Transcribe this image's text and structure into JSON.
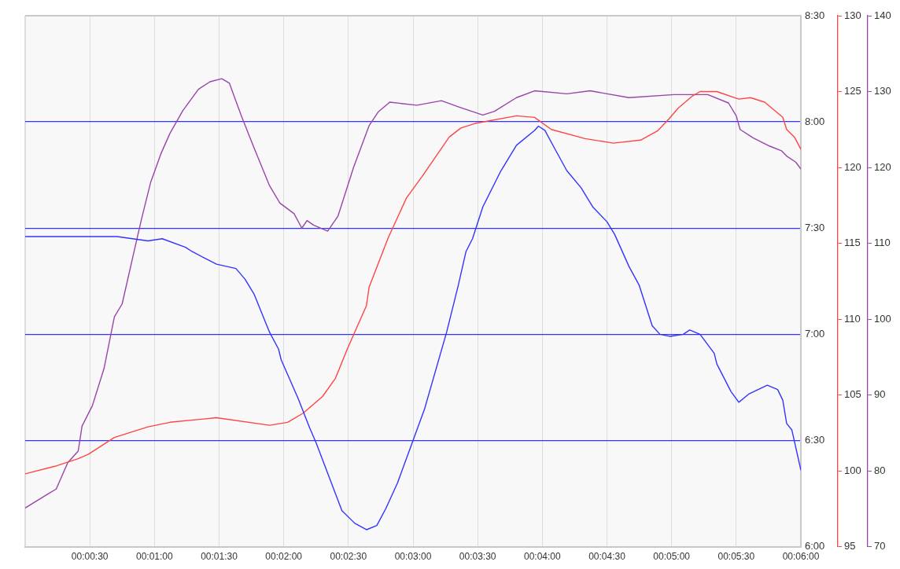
{
  "chart_data": {
    "type": "line",
    "xlim": [
      0,
      6
    ],
    "xticks": [
      {
        "value": 0,
        "label": null
      },
      {
        "value": 0.5,
        "label": "00:00:30"
      },
      {
        "value": 1,
        "label": "00:01:00"
      },
      {
        "value": 1.5,
        "label": "00:01:30"
      },
      {
        "value": 2,
        "label": "00:02:00"
      },
      {
        "value": 2.5,
        "label": "00:02:30"
      },
      {
        "value": 3,
        "label": "00:03:00"
      },
      {
        "value": 3.5,
        "label": "00:03:30"
      },
      {
        "value": 4,
        "label": "00:04:00"
      },
      {
        "value": 4.5,
        "label": "00:04:30"
      },
      {
        "value": 5,
        "label": "00:05:00"
      },
      {
        "value": 5.5,
        "label": "00:05:30"
      },
      {
        "value": 6,
        "label": "00:06:00"
      }
    ],
    "ylim": [
      6,
      8.5
    ],
    "yticks": [
      {
        "value": 6,
        "label": "6:00"
      },
      {
        "value": 6.5,
        "label": "6:30"
      },
      {
        "value": 7,
        "label": "7:00"
      },
      {
        "value": 7.5,
        "label": "7:30"
      },
      {
        "value": 8,
        "label": "8:00"
      },
      {
        "value": 8.5,
        "label": "8:30"
      }
    ],
    "y2lim": [
      95,
      130
    ],
    "y2ticks": [
      95,
      100,
      105,
      110,
      115,
      120,
      125,
      130
    ],
    "y3lim": [
      70,
      140
    ],
    "y3ticks": [
      70,
      80,
      90,
      100,
      110,
      120,
      130,
      140
    ],
    "grid": true,
    "legend": false,
    "marker": "none",
    "series": [
      {
        "color": "#3333ff",
        "x": [
          0,
          0.71,
          0.95,
          1.06,
          1.24,
          1.29,
          1.48,
          1.63,
          1.7,
          1.77,
          1.89,
          1.96,
          1.98,
          2.11,
          2.2,
          2.25,
          2.35,
          2.45,
          2.55,
          2.64,
          2.72,
          2.79,
          2.88,
          2.97,
          3.09,
          3.26,
          3.35,
          3.41,
          3.46,
          3.54,
          3.68,
          3.8,
          3.94,
          3.97,
          4.02,
          4.1,
          4.19,
          4.3,
          4.39,
          4.5,
          4.56,
          4.67,
          4.75,
          4.85,
          4.91,
          4.99,
          5.09,
          5.14,
          5.22,
          5.33,
          5.35,
          5.46,
          5.52,
          5.6,
          5.74,
          5.82,
          5.86,
          5.89,
          5.93,
          6
        ],
        "values": [
          7.46,
          7.46,
          7.44,
          7.45,
          7.41,
          7.39,
          7.33,
          7.31,
          7.26,
          7.19,
          7.01,
          6.93,
          6.88,
          6.7,
          6.56,
          6.49,
          6.33,
          6.17,
          6.11,
          6.08,
          6.1,
          6.18,
          6.3,
          6.45,
          6.65,
          7.01,
          7.23,
          7.39,
          7.45,
          7.6,
          7.77,
          7.89,
          7.96,
          7.98,
          7.96,
          7.87,
          7.77,
          7.69,
          7.6,
          7.53,
          7.47,
          7.32,
          7.23,
          7.04,
          7,
          6.99,
          7,
          7.02,
          7,
          6.91,
          6.86,
          6.73,
          6.68,
          6.72,
          6.76,
          6.74,
          6.69,
          6.58,
          6.55,
          6.36
        ]
      },
      {
        "color": "#ff4444",
        "axis": "y2",
        "x": [
          0,
          0.23,
          0.41,
          0.49,
          0.69,
          0.95,
          1.12,
          1.48,
          1.89,
          2.03,
          2.15,
          2.3,
          2.4,
          2.49,
          2.64,
          2.66,
          2.81,
          2.95,
          3.07,
          3.28,
          3.37,
          3.48,
          3.8,
          3.94,
          4.07,
          4.33,
          4.55,
          4.76,
          4.89,
          4.98,
          5.05,
          5.16,
          5.22,
          5.35,
          5.52,
          5.61,
          5.72,
          5.86,
          5.89,
          5.95,
          6
        ],
        "values": [
          99.8,
          100.3,
          100.8,
          101.1,
          102.2,
          102.9,
          103.2,
          103.5,
          103,
          103.2,
          103.8,
          104.9,
          106.1,
          108,
          110.9,
          112.1,
          115.4,
          118,
          119.4,
          122,
          122.6,
          122.9,
          123.4,
          123.3,
          122.5,
          121.9,
          121.6,
          121.8,
          122.4,
          123.2,
          123.9,
          124.7,
          125,
          125,
          124.5,
          124.6,
          124.3,
          123.3,
          122.5,
          122,
          121.2
        ]
      },
      {
        "color": "#9944aa",
        "axis": "y3",
        "x": [
          0,
          0.18,
          0.24,
          0.33,
          0.41,
          0.44,
          0.52,
          0.61,
          0.69,
          0.75,
          0.83,
          0.9,
          0.97,
          1.05,
          1.12,
          1.22,
          1.34,
          1.43,
          1.52,
          1.58,
          1.67,
          1.77,
          1.89,
          1.97,
          2.08,
          2.14,
          2.18,
          2.23,
          2.34,
          2.42,
          2.54,
          2.66,
          2.73,
          2.82,
          3.03,
          3.22,
          3.35,
          3.54,
          3.63,
          3.8,
          3.94,
          4.19,
          4.37,
          4.67,
          5.02,
          5.28,
          5.44,
          5.5,
          5.53,
          5.63,
          5.76,
          5.85,
          5.89,
          5.96,
          6
        ],
        "values": [
          75.1,
          77,
          77.6,
          81.1,
          82.6,
          85.9,
          88.6,
          93.5,
          100.3,
          102,
          108,
          113.2,
          118,
          121.8,
          124.5,
          127.5,
          130.3,
          131.3,
          131.7,
          131.1,
          126.9,
          122.6,
          117.6,
          115.3,
          113.9,
          112,
          113,
          112.4,
          111.6,
          113.6,
          120,
          125.5,
          127.3,
          128.6,
          128.2,
          128.8,
          128,
          126.9,
          127.4,
          129.2,
          130.1,
          129.7,
          130.1,
          129.2,
          129.6,
          129.6,
          128.5,
          126.8,
          125,
          123.9,
          122.8,
          122.2,
          121.5,
          120.7,
          119.8
        ]
      }
    ]
  }
}
